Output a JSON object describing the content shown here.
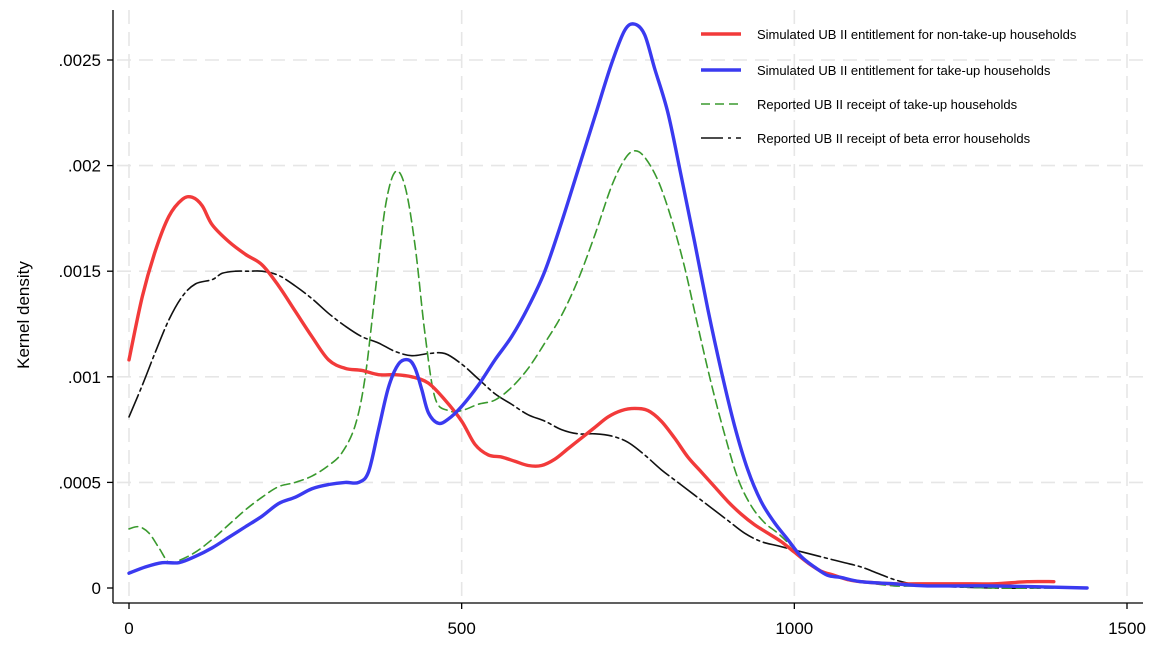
{
  "chart_data": {
    "type": "line",
    "title": "",
    "xlabel": "",
    "ylabel": "Kernel density",
    "xlim": [
      0,
      1500
    ],
    "ylim": [
      0,
      0.0027
    ],
    "x_ticks": [
      0,
      500,
      1000,
      1500
    ],
    "x_tick_labels": [
      "0",
      "500",
      "1000",
      "1500"
    ],
    "y_ticks": [
      0,
      0.0005,
      0.001,
      0.0015,
      0.002,
      0.0025
    ],
    "y_tick_labels": [
      "0",
      ".0005",
      ".001",
      ".0015",
      ".002",
      ".0025"
    ],
    "grid": true,
    "legend_position": "top-right",
    "series": [
      {
        "name": "Simulated UB II entitlement for non-take-up households",
        "color": "#f23a3a",
        "style": "solid",
        "points": [
          [
            0,
            0.00108
          ],
          [
            20,
            0.00138
          ],
          [
            40,
            0.0016
          ],
          [
            60,
            0.00176
          ],
          [
            80,
            0.00184
          ],
          [
            95,
            0.00185
          ],
          [
            110,
            0.00181
          ],
          [
            125,
            0.00172
          ],
          [
            150,
            0.00164
          ],
          [
            175,
            0.00158
          ],
          [
            200,
            0.00153
          ],
          [
            225,
            0.00143
          ],
          [
            250,
            0.00131
          ],
          [
            275,
            0.00119
          ],
          [
            300,
            0.00108
          ],
          [
            325,
            0.00104
          ],
          [
            350,
            0.00103
          ],
          [
            375,
            0.00101
          ],
          [
            400,
            0.00101
          ],
          [
            425,
            0.001
          ],
          [
            450,
            0.00097
          ],
          [
            475,
            0.00089
          ],
          [
            500,
            0.00079
          ],
          [
            520,
            0.00068
          ],
          [
            540,
            0.00063
          ],
          [
            560,
            0.00062
          ],
          [
            580,
            0.0006
          ],
          [
            600,
            0.00058
          ],
          [
            620,
            0.00058
          ],
          [
            640,
            0.00061
          ],
          [
            660,
            0.00066
          ],
          [
            680,
            0.00071
          ],
          [
            700,
            0.00076
          ],
          [
            720,
            0.00081
          ],
          [
            740,
            0.00084
          ],
          [
            760,
            0.00085
          ],
          [
            780,
            0.00084
          ],
          [
            800,
            0.00079
          ],
          [
            820,
            0.00071
          ],
          [
            840,
            0.00062
          ],
          [
            860,
            0.00055
          ],
          [
            880,
            0.00048
          ],
          [
            900,
            0.00041
          ],
          [
            920,
            0.00035
          ],
          [
            940,
            0.0003
          ],
          [
            960,
            0.00026
          ],
          [
            980,
            0.00022
          ],
          [
            1000,
            0.00017
          ],
          [
            1020,
            0.00012
          ],
          [
            1040,
            8e-05
          ],
          [
            1060,
            6e-05
          ],
          [
            1080,
            4e-05
          ],
          [
            1100,
            3e-05
          ],
          [
            1150,
            2e-05
          ],
          [
            1200,
            2e-05
          ],
          [
            1250,
            2e-05
          ],
          [
            1300,
            2e-05
          ],
          [
            1350,
            3e-05
          ],
          [
            1390,
            3e-05
          ]
        ]
      },
      {
        "name": "Simulated UB II entitlement for take-up households",
        "color": "#3a3af0",
        "style": "solid",
        "points": [
          [
            0,
            7e-05
          ],
          [
            25,
            0.0001
          ],
          [
            50,
            0.00012
          ],
          [
            75,
            0.00012
          ],
          [
            100,
            0.00015
          ],
          [
            125,
            0.00019
          ],
          [
            150,
            0.00024
          ],
          [
            175,
            0.00029
          ],
          [
            200,
            0.00034
          ],
          [
            225,
            0.0004
          ],
          [
            250,
            0.00043
          ],
          [
            275,
            0.00047
          ],
          [
            300,
            0.00049
          ],
          [
            325,
            0.0005
          ],
          [
            345,
            0.0005
          ],
          [
            360,
            0.00055
          ],
          [
            375,
            0.00075
          ],
          [
            390,
            0.00095
          ],
          [
            405,
            0.00106
          ],
          [
            420,
            0.00108
          ],
          [
            430,
            0.00104
          ],
          [
            440,
            0.00094
          ],
          [
            450,
            0.00083
          ],
          [
            465,
            0.00078
          ],
          [
            480,
            0.0008
          ],
          [
            500,
            0.00086
          ],
          [
            525,
            0.00096
          ],
          [
            550,
            0.00108
          ],
          [
            575,
            0.00119
          ],
          [
            600,
            0.00133
          ],
          [
            625,
            0.0015
          ],
          [
            650,
            0.00173
          ],
          [
            675,
            0.00198
          ],
          [
            700,
            0.00223
          ],
          [
            725,
            0.00248
          ],
          [
            745,
            0.00264
          ],
          [
            760,
            0.00267
          ],
          [
            775,
            0.00262
          ],
          [
            790,
            0.00246
          ],
          [
            810,
            0.00225
          ],
          [
            830,
            0.00195
          ],
          [
            850,
            0.00164
          ],
          [
            870,
            0.00132
          ],
          [
            890,
            0.00103
          ],
          [
            910,
            0.00077
          ],
          [
            930,
            0.00056
          ],
          [
            950,
            0.00041
          ],
          [
            970,
            0.00031
          ],
          [
            990,
            0.00023
          ],
          [
            1010,
            0.00015
          ],
          [
            1030,
            0.0001
          ],
          [
            1050,
            6e-05
          ],
          [
            1070,
            5e-05
          ],
          [
            1100,
            3e-05
          ],
          [
            1150,
            2e-05
          ],
          [
            1200,
            1e-05
          ],
          [
            1300,
            1e-05
          ],
          [
            1440,
            0.0
          ]
        ]
      },
      {
        "name": "Reported UB II receipt of take-up households",
        "color": "#3a9a2e",
        "style": "dashed",
        "points": [
          [
            0,
            0.00028
          ],
          [
            15,
            0.00029
          ],
          [
            30,
            0.00026
          ],
          [
            45,
            0.00019
          ],
          [
            60,
            0.00012
          ],
          [
            75,
            0.00013
          ],
          [
            100,
            0.00017
          ],
          [
            125,
            0.00023
          ],
          [
            150,
            0.0003
          ],
          [
            175,
            0.00037
          ],
          [
            200,
            0.00043
          ],
          [
            225,
            0.00048
          ],
          [
            250,
            0.0005
          ],
          [
            275,
            0.00053
          ],
          [
            300,
            0.00058
          ],
          [
            320,
            0.00064
          ],
          [
            340,
            0.00077
          ],
          [
            355,
            0.001
          ],
          [
            370,
            0.0014
          ],
          [
            385,
            0.0018
          ],
          [
            400,
            0.00197
          ],
          [
            415,
            0.0019
          ],
          [
            430,
            0.00162
          ],
          [
            445,
            0.0012
          ],
          [
            460,
            0.0009
          ],
          [
            480,
            0.00084
          ],
          [
            500,
            0.00084
          ],
          [
            525,
            0.00087
          ],
          [
            550,
            0.00089
          ],
          [
            575,
            0.00095
          ],
          [
            600,
            0.00104
          ],
          [
            625,
            0.00116
          ],
          [
            650,
            0.00129
          ],
          [
            675,
            0.00146
          ],
          [
            700,
            0.00167
          ],
          [
            725,
            0.0019
          ],
          [
            745,
            0.00203
          ],
          [
            760,
            0.00207
          ],
          [
            775,
            0.00204
          ],
          [
            795,
            0.00193
          ],
          [
            815,
            0.00175
          ],
          [
            835,
            0.00152
          ],
          [
            855,
            0.00124
          ],
          [
            875,
            0.00097
          ],
          [
            895,
            0.00073
          ],
          [
            915,
            0.00052
          ],
          [
            935,
            0.00039
          ],
          [
            955,
            0.00031
          ],
          [
            975,
            0.00026
          ],
          [
            995,
            0.0002
          ],
          [
            1015,
            0.00013
          ],
          [
            1040,
            8e-05
          ],
          [
            1070,
            5e-05
          ],
          [
            1100,
            3e-05
          ],
          [
            1150,
            1e-05
          ],
          [
            1200,
            1e-05
          ],
          [
            1300,
            0.0
          ],
          [
            1400,
            0.0
          ]
        ]
      },
      {
        "name": "Reported UB II receipt of beta error households",
        "color": "#111111",
        "style": "longdash",
        "points": [
          [
            0,
            0.00081
          ],
          [
            20,
            0.00096
          ],
          [
            40,
            0.00112
          ],
          [
            60,
            0.00127
          ],
          [
            80,
            0.00138
          ],
          [
            100,
            0.00144
          ],
          [
            125,
            0.00146
          ],
          [
            140,
            0.00149
          ],
          [
            160,
            0.0015
          ],
          [
            180,
            0.0015
          ],
          [
            200,
            0.0015
          ],
          [
            225,
            0.00148
          ],
          [
            250,
            0.00143
          ],
          [
            275,
            0.00137
          ],
          [
            300,
            0.0013
          ],
          [
            325,
            0.00124
          ],
          [
            350,
            0.00119
          ],
          [
            375,
            0.00116
          ],
          [
            400,
            0.00112
          ],
          [
            425,
            0.0011
          ],
          [
            450,
            0.00111
          ],
          [
            475,
            0.00111
          ],
          [
            500,
            0.00106
          ],
          [
            525,
            0.00099
          ],
          [
            550,
            0.00092
          ],
          [
            575,
            0.00087
          ],
          [
            600,
            0.00082
          ],
          [
            625,
            0.00079
          ],
          [
            650,
            0.00075
          ],
          [
            675,
            0.00073
          ],
          [
            700,
            0.00073
          ],
          [
            725,
            0.00072
          ],
          [
            750,
            0.00069
          ],
          [
            775,
            0.00063
          ],
          [
            800,
            0.00056
          ],
          [
            825,
            0.0005
          ],
          [
            850,
            0.00044
          ],
          [
            875,
            0.00038
          ],
          [
            900,
            0.00032
          ],
          [
            925,
            0.00026
          ],
          [
            950,
            0.00022
          ],
          [
            975,
            0.0002
          ],
          [
            1000,
            0.00018
          ],
          [
            1025,
            0.00016
          ],
          [
            1050,
            0.00014
          ],
          [
            1075,
            0.00012
          ],
          [
            1100,
            0.0001
          ],
          [
            1125,
            7e-05
          ],
          [
            1150,
            4e-05
          ],
          [
            1175,
            2e-05
          ],
          [
            1200,
            1e-05
          ],
          [
            1300,
            0.0
          ],
          [
            1370,
            0.0
          ]
        ]
      }
    ]
  }
}
